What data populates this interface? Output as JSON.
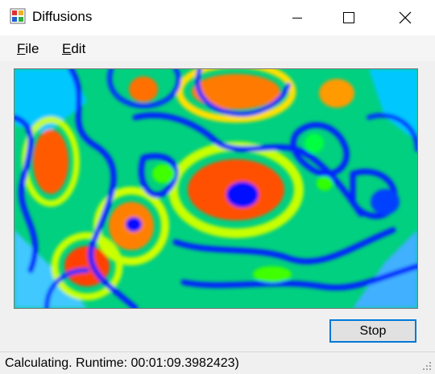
{
  "window": {
    "title": "Diffusions",
    "icon": "app-window-icon",
    "controls": [
      "minimize-icon",
      "maximize-icon",
      "close-icon"
    ]
  },
  "menu": {
    "file": {
      "accel": "F",
      "rest": "ile"
    },
    "edit": {
      "accel": "E",
      "rest": "dit"
    }
  },
  "canvas": {
    "description_icon": "reaction-diffusion-pattern",
    "palette": [
      "#0000ff",
      "#00c8ff",
      "#00ff64",
      "#c8ff00",
      "#ff3200"
    ]
  },
  "buttons": {
    "stop_label": "Stop"
  },
  "status": {
    "text": "Calculating. Runtime: 00:01:09.3982423)"
  },
  "colors": {
    "accent": "#0078d7",
    "window_bg": "#f0f0f0"
  }
}
